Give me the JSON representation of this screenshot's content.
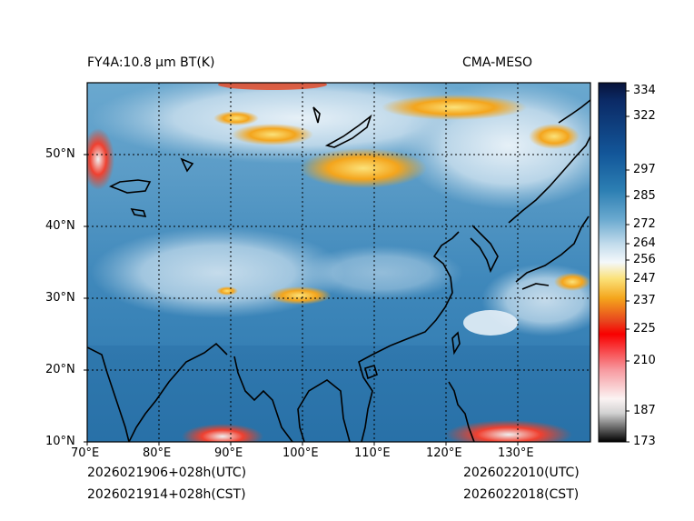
{
  "title_left": "FY4A:10.8 μm BT(K)",
  "title_right": "CMA-MESO",
  "lat_labels": [
    "50°N",
    "40°N",
    "30°N",
    "20°N",
    "10°N"
  ],
  "lon_labels": [
    "70°E",
    "80°E",
    "90°E",
    "100°E",
    "110°E",
    "120°E",
    "130°E"
  ],
  "colorbar_ticks": [
    "334",
    "322",
    "297",
    "285",
    "272",
    "264",
    "256",
    "247",
    "237",
    "225",
    "210",
    "187",
    "173"
  ],
  "init_utc": "2026021906+028h(UTC)",
  "init_cst": "2026021914+028h(CST)",
  "valid_utc": "2026022010(UTC)",
  "valid_cst": "2026022018(CST)",
  "colors": {
    "ocean": "#2f7fb3",
    "land_deep": "#1f6494",
    "cloud_light": "#dcebf5",
    "cloud_warm": "#f4a51c",
    "cloud_cold": "#e8431d",
    "coast": "#000000"
  }
}
